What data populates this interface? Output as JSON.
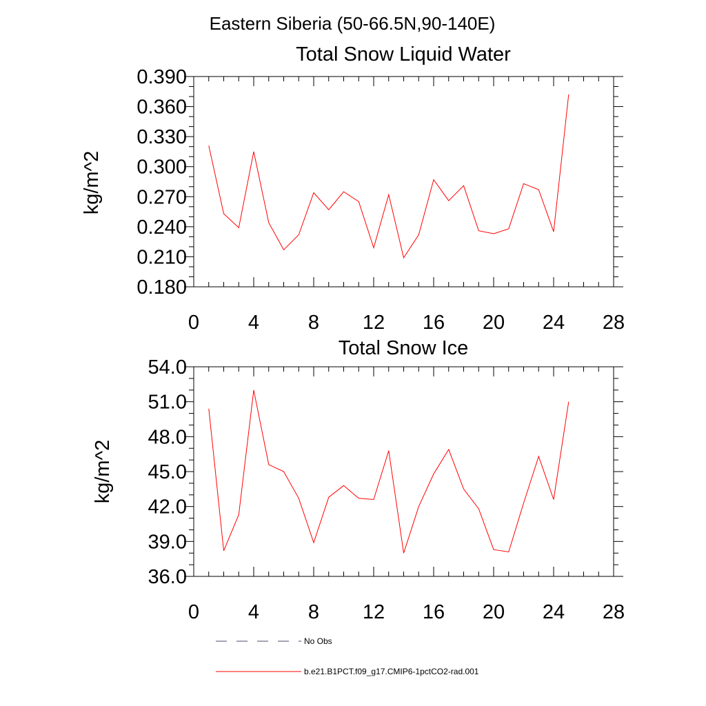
{
  "figure": {
    "title": "Eastern Siberia (50-66.5N,90-140E)"
  },
  "legend": [
    {
      "label": "No Obs",
      "color": "#4a4a6a",
      "style": "dashed"
    },
    {
      "label": "b.e21.B1PCT.f09_g17.CMIP6-1pctCO2-rad.001",
      "color": "#ff0000",
      "style": "solid"
    }
  ],
  "chart_data": [
    {
      "type": "line",
      "title": "Total Snow Liquid Water",
      "xlabel": "",
      "ylabel": "kg/m^2",
      "xlim": [
        0,
        28
      ],
      "ylim": [
        0.18,
        0.39
      ],
      "xticks": [
        "0",
        "4",
        "8",
        "12",
        "16",
        "20",
        "24",
        "28"
      ],
      "yticks": [
        "0.180",
        "0.210",
        "0.240",
        "0.270",
        "0.300",
        "0.330",
        "0.360",
        "0.390"
      ],
      "grid": false,
      "series": [
        {
          "name": "b.e21.B1PCT.f09_g17.CMIP6-1pctCO2-rad.001",
          "color": "#ff0000",
          "x": [
            1,
            2,
            3,
            4,
            5,
            6,
            7,
            8,
            9,
            10,
            11,
            12,
            13,
            14,
            15,
            16,
            17,
            18,
            19,
            20,
            21,
            22,
            23,
            24,
            25
          ],
          "y": [
            0.321,
            0.253,
            0.239,
            0.315,
            0.244,
            0.217,
            0.232,
            0.274,
            0.257,
            0.275,
            0.265,
            0.219,
            0.272,
            0.209,
            0.232,
            0.287,
            0.266,
            0.281,
            0.236,
            0.233,
            0.238,
            0.283,
            0.277,
            0.235,
            0.372
          ]
        }
      ]
    },
    {
      "type": "line",
      "title": "Total Snow Ice",
      "xlabel": "",
      "ylabel": "kg/m^2",
      "xlim": [
        0,
        28
      ],
      "ylim": [
        36.0,
        54.0
      ],
      "xticks": [
        "0",
        "4",
        "8",
        "12",
        "16",
        "20",
        "24",
        "28"
      ],
      "yticks": [
        "36.0",
        "39.0",
        "42.0",
        "45.0",
        "48.0",
        "51.0",
        "54.0"
      ],
      "grid": false,
      "series": [
        {
          "name": "b.e21.B1PCT.f09_g17.CMIP6-1pctCO2-rad.001",
          "color": "#ff0000",
          "x": [
            1,
            2,
            3,
            4,
            5,
            6,
            7,
            8,
            9,
            10,
            11,
            12,
            13,
            14,
            15,
            16,
            17,
            18,
            19,
            20,
            21,
            22,
            23,
            24,
            25
          ],
          "y": [
            50.4,
            38.2,
            41.3,
            52.0,
            45.6,
            45.0,
            42.7,
            38.9,
            42.8,
            43.8,
            42.7,
            42.6,
            46.8,
            38.0,
            42.0,
            44.8,
            46.9,
            43.5,
            41.8,
            38.3,
            38.1,
            42.3,
            46.3,
            42.6,
            51.0
          ]
        }
      ]
    }
  ]
}
